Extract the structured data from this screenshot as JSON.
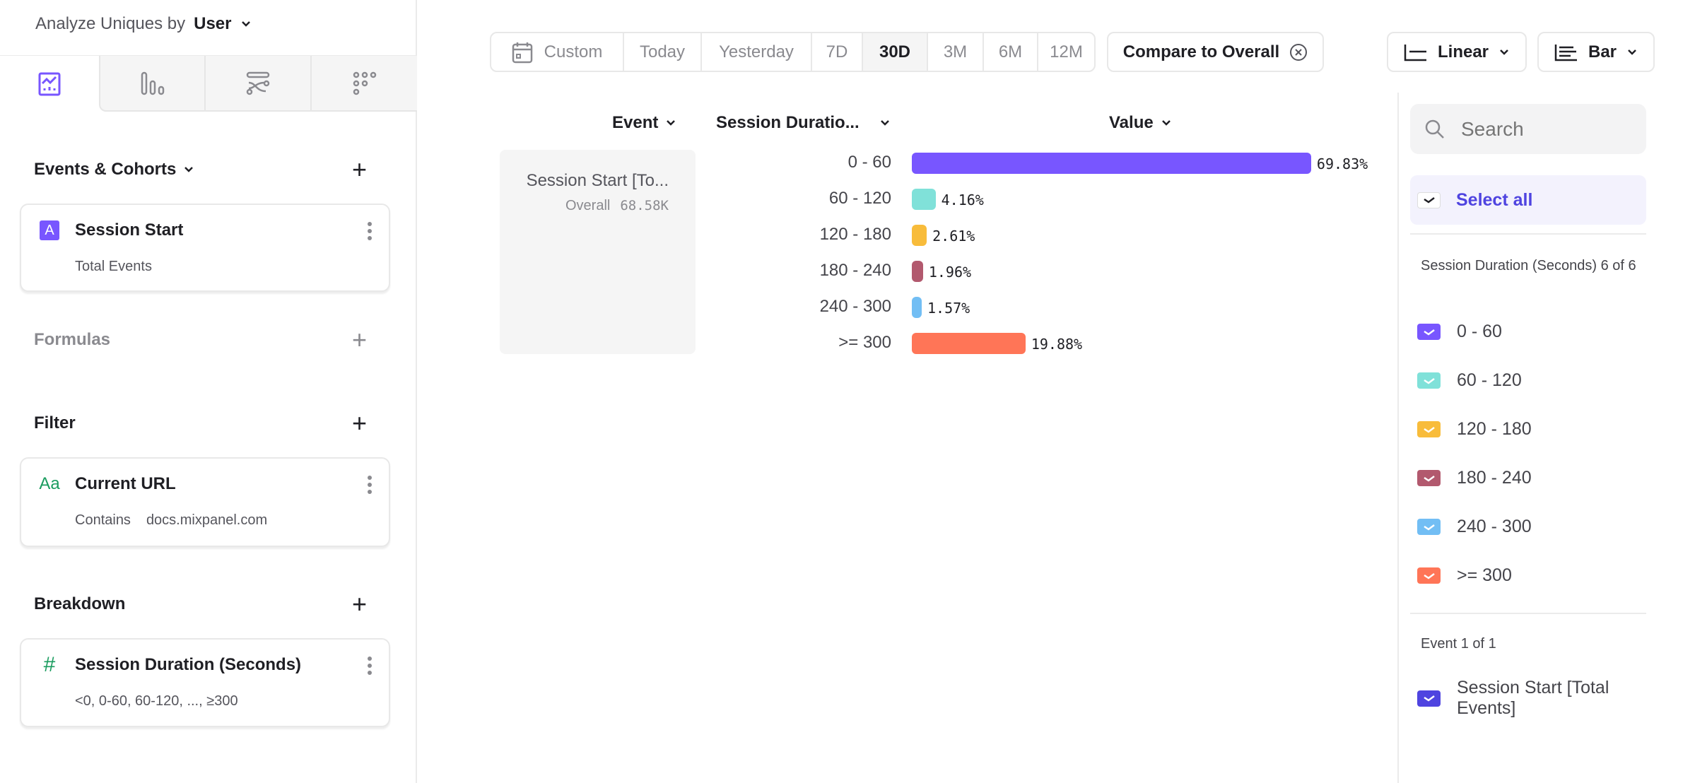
{
  "sidebar": {
    "analyze_label": "Analyze Uniques by",
    "analyze_value": "User",
    "tabs": [
      {
        "icon": "insights-chart-icon",
        "active": true
      },
      {
        "icon": "funnels-icon",
        "active": false
      },
      {
        "icon": "flows-icon",
        "active": false
      },
      {
        "icon": "retention-icon",
        "active": false
      }
    ],
    "events_title": "Events & Cohorts",
    "event_card": {
      "badge": "A",
      "title": "Session Start",
      "subtitle": "Total Events"
    },
    "formulas_title": "Formulas",
    "filter_title": "Filter",
    "filter_card": {
      "icon_text": "Aa",
      "title": "Current URL",
      "operator": "Contains",
      "value": "docs.mixpanel.com"
    },
    "breakdown_title": "Breakdown",
    "breakdown_card": {
      "icon_text": "#",
      "title": "Session Duration (Seconds)",
      "subtitle": "<0, 0-60, 60-120, ..., ≥300"
    }
  },
  "toolbar": {
    "date_ranges": [
      "Custom",
      "Today",
      "Yesterday",
      "7D",
      "30D",
      "3M",
      "6M",
      "12M"
    ],
    "active_range": "30D",
    "compare_label": "Compare to Overall",
    "scale_label": "Linear",
    "chart_type_label": "Bar"
  },
  "table": {
    "col_event": "Event",
    "col_breakdown": "Session Duratio...",
    "col_value": "Value",
    "event_name": "Session Start [To...",
    "overall_label": "Overall",
    "overall_value": "68.58K",
    "rows": [
      {
        "label": "0 - 60",
        "value": 69.83,
        "value_text": "69.83%",
        "color": "#7856FF"
      },
      {
        "label": "60 - 120",
        "value": 4.16,
        "value_text": "4.16%",
        "color": "#80E1D9"
      },
      {
        "label": "120 - 180",
        "value": 2.61,
        "value_text": "2.61%",
        "color": "#F8BC3B"
      },
      {
        "label": "180 - 240",
        "value": 1.96,
        "value_text": "1.96%",
        "color": "#B2596E"
      },
      {
        "label": "240 - 300",
        "value": 1.57,
        "value_text": "1.57%",
        "color": "#72BEF4"
      },
      {
        "label": ">= 300",
        "value": 19.88,
        "value_text": "19.88%",
        "color": "#FF7557"
      }
    ]
  },
  "legend": {
    "search_placeholder": "Search",
    "select_all": "Select all",
    "group_title": "Session Duration (Seconds) 6 of 6",
    "items": [
      {
        "label": "0 - 60",
        "color": "#7856FF",
        "checked": true
      },
      {
        "label": "60 - 120",
        "color": "#80E1D9",
        "checked": true
      },
      {
        "label": "120 - 180",
        "color": "#F8BC3B",
        "checked": true
      },
      {
        "label": "180 - 240",
        "color": "#B2596E",
        "checked": true
      },
      {
        "label": "240 - 300",
        "color": "#72BEF4",
        "checked": true
      },
      {
        "label": ">= 300",
        "color": "#FF7557",
        "checked": true
      }
    ],
    "event_group_title": "Event 1 of 1",
    "event_item": {
      "label": "Session Start [Total Events]",
      "color": "#4F44E0",
      "checked": true
    }
  }
}
